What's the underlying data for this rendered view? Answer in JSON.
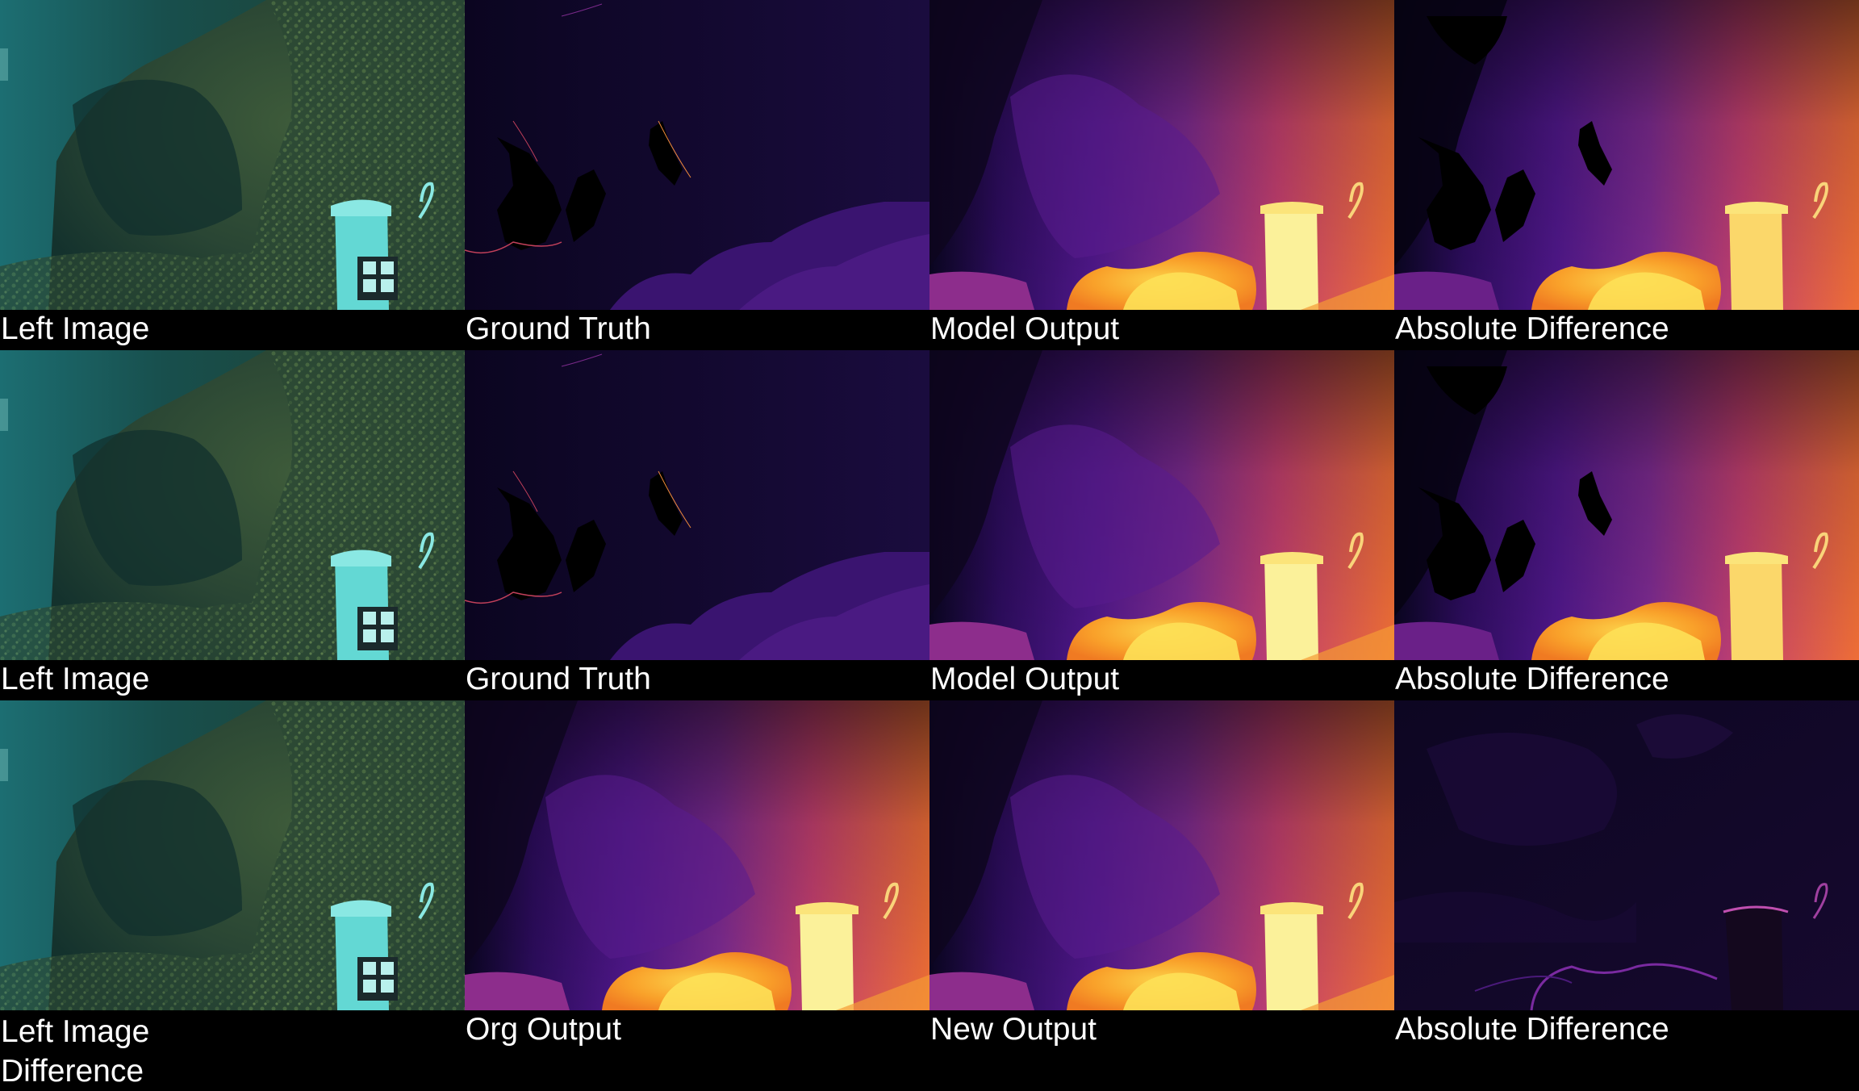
{
  "rows": [
    {
      "captions": [
        "Left Image",
        "Ground Truth",
        "Model Output",
        "Absolute Difference"
      ]
    },
    {
      "captions": [
        "Left Image",
        "Ground Truth",
        "Model Output",
        "Absolute Difference"
      ]
    },
    {
      "captions": [
        "Left Image\nDifference",
        "Org Output",
        "New Output",
        "Absolute Difference"
      ]
    }
  ],
  "colormap": {
    "name": "inferno",
    "stops": [
      "#000004",
      "#2a0b5a",
      "#5b1e8a",
      "#8a2a8c",
      "#c6406a",
      "#ef6a3a",
      "#f9a82e",
      "#f8e27a",
      "#fcffa4"
    ]
  },
  "underwater_palette": [
    "#0a3b3e",
    "#1f5a55",
    "#2d6b5b",
    "#3f7a5d",
    "#6fd8d8"
  ]
}
